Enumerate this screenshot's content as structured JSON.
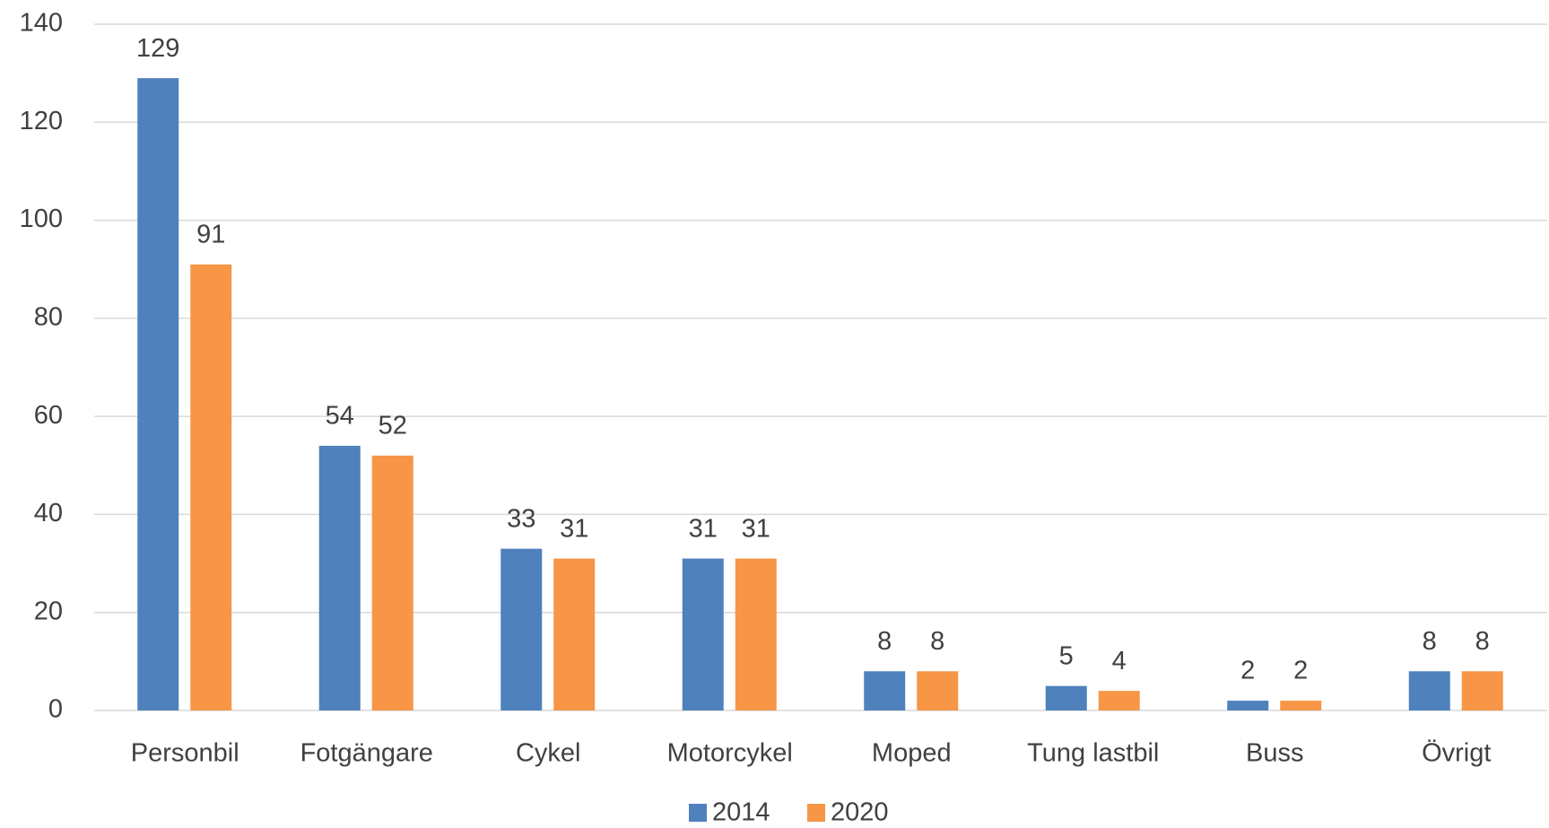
{
  "chart_data": {
    "type": "bar",
    "categories": [
      "Personbil",
      "Fotgängare",
      "Cykel",
      "Motorcykel",
      "Moped",
      "Tung lastbil",
      "Buss",
      "Övrigt"
    ],
    "series": [
      {
        "name": "2014",
        "color": "#4f81bd",
        "values": [
          129,
          54,
          33,
          31,
          8,
          5,
          2,
          8
        ]
      },
      {
        "name": "2020",
        "color": "#f79646",
        "values": [
          91,
          52,
          31,
          31,
          8,
          4,
          2,
          8
        ]
      }
    ],
    "ylim": [
      0,
      140
    ],
    "yticks": [
      0,
      20,
      40,
      60,
      80,
      100,
      120,
      140
    ],
    "grid": true,
    "legend": "bottom"
  }
}
